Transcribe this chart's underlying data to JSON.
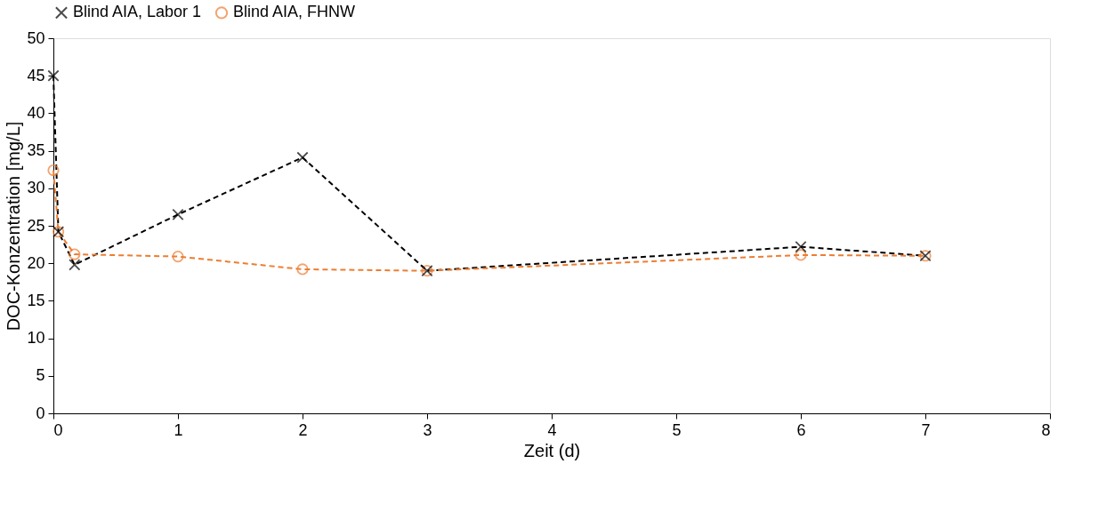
{
  "chart_data": {
    "type": "line",
    "xlabel": "Zeit (d)",
    "ylabel": "DOC-Konzentration [mg/L]",
    "xlim": [
      0,
      8
    ],
    "xticks": [
      0,
      1,
      2,
      3,
      4,
      5,
      6,
      7,
      8
    ],
    "ylim": [
      0,
      50
    ],
    "yticks": [
      0,
      5,
      10,
      15,
      20,
      25,
      30,
      35,
      40,
      45,
      50
    ],
    "grid": false,
    "legend": "top",
    "line_style": "dashed",
    "series": [
      {
        "name": "Blind AIA, Labor 1",
        "color": "#000000",
        "marker": "cross",
        "x": [
          0,
          0.04,
          0.17,
          1,
          2,
          3,
          6,
          7
        ],
        "values": [
          45,
          24.2,
          19.8,
          26.5,
          34.1,
          19,
          22.2,
          21
        ]
      },
      {
        "name": "Blind AIA, FHNW",
        "color": "#ed7d31",
        "marker": "circle",
        "x": [
          0,
          0.04,
          0.17,
          1,
          2,
          3,
          6,
          7
        ],
        "values": [
          32.4,
          24.2,
          21.2,
          20.9,
          19.2,
          19,
          21.1,
          21
        ]
      }
    ]
  }
}
